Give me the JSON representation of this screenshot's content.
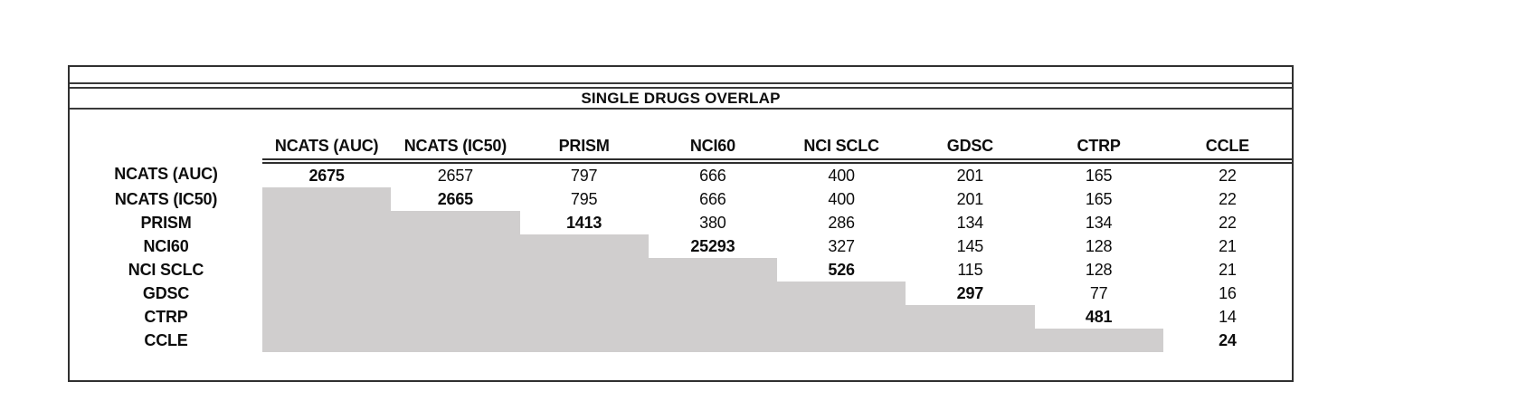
{
  "colors": {
    "shaded_cell": "#d0cece",
    "border": "#303030",
    "text": "#0d0d0d",
    "background": "#ffffff"
  },
  "chart_data": {
    "type": "table",
    "title": "SINGLE DRUGS OVERLAP",
    "columns": [
      "NCATS (AUC)",
      "NCATS (IC50)",
      "PRISM",
      "NCI60",
      "NCI SCLC",
      "GDSC",
      "CTRP",
      "CCLE"
    ],
    "row_labels": [
      "NCATS (AUC)",
      "NCATS (IC50)",
      "PRISM",
      "NCI60",
      "NCI SCLC",
      "GDSC",
      "CTRP",
      "CCLE"
    ],
    "matrix": [
      [
        2675,
        2657,
        797,
        666,
        400,
        201,
        165,
        22
      ],
      [
        null,
        2665,
        795,
        666,
        400,
        201,
        165,
        22
      ],
      [
        null,
        null,
        1413,
        380,
        286,
        134,
        134,
        22
      ],
      [
        null,
        null,
        null,
        25293,
        327,
        145,
        128,
        21
      ],
      [
        null,
        null,
        null,
        null,
        526,
        115,
        128,
        21
      ],
      [
        null,
        null,
        null,
        null,
        null,
        297,
        77,
        16
      ],
      [
        null,
        null,
        null,
        null,
        null,
        null,
        481,
        14
      ],
      [
        null,
        null,
        null,
        null,
        null,
        null,
        null,
        24
      ]
    ],
    "layout_hints": {
      "diagonal_bold": true,
      "lower_triangle_shaded": true,
      "gridlines": false
    }
  }
}
